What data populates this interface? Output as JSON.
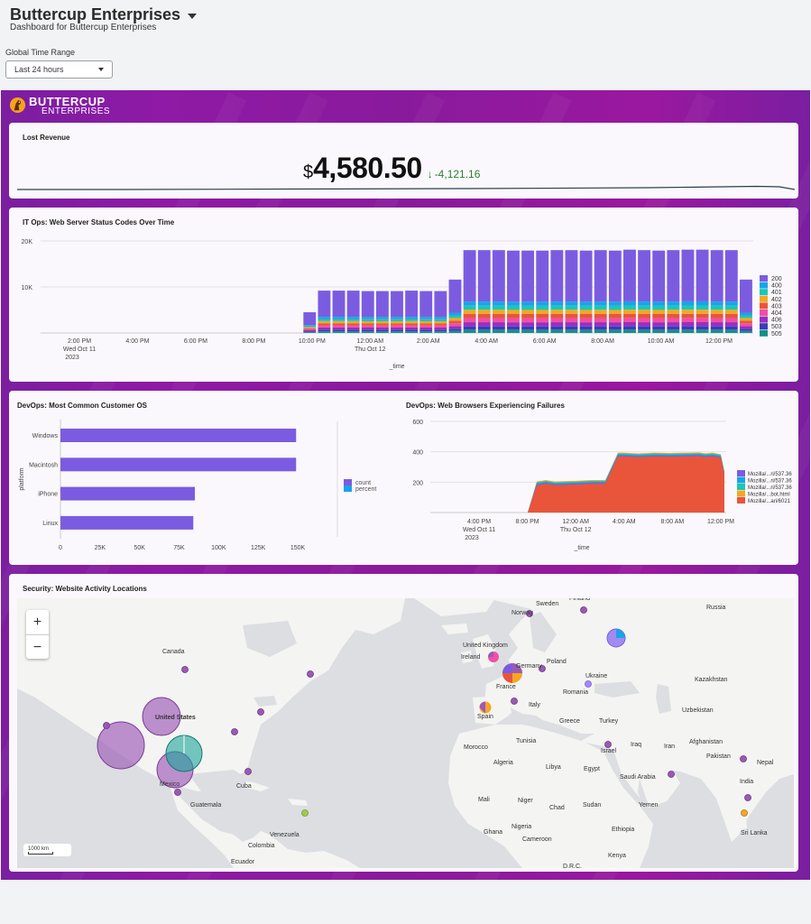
{
  "header": {
    "title": "Buttercup Enterprises",
    "subtitle": "Dashboard for Buttercup Enterprises",
    "time_range_label": "Global Time Range",
    "time_range_value": "Last 24 hours"
  },
  "logo": {
    "line1": "BUTTERCUP",
    "line2": "ENTERPRISES"
  },
  "lost_revenue": {
    "title": "Lost Revenue",
    "currency": "$",
    "value": "4,580.50",
    "delta": "-4,121.16",
    "delta_color": "#2e7d32"
  },
  "status_codes": {
    "title": "IT Ops: Web Server Status Codes Over Time",
    "y_ticks": [
      "20K",
      "10K"
    ],
    "x_ticks": [
      {
        "t1": "2:00 PM",
        "t2": "Wed Oct 11",
        "t3": "2023"
      },
      {
        "t1": "4:00 PM",
        "t2": "",
        "t3": ""
      },
      {
        "t1": "6:00 PM",
        "t2": "",
        "t3": ""
      },
      {
        "t1": "8:00 PM",
        "t2": "",
        "t3": ""
      },
      {
        "t1": "10:00 PM",
        "t2": "",
        "t3": ""
      },
      {
        "t1": "12:00 AM",
        "t2": "Thu Oct 12",
        "t3": ""
      },
      {
        "t1": "2:00 AM",
        "t2": "",
        "t3": ""
      },
      {
        "t1": "4:00 AM",
        "t2": "",
        "t3": ""
      },
      {
        "t1": "6:00 AM",
        "t2": "",
        "t3": ""
      },
      {
        "t1": "8:00 AM",
        "t2": "",
        "t3": ""
      },
      {
        "t1": "10:00 AM",
        "t2": "",
        "t3": ""
      },
      {
        "t1": "12:00 PM",
        "t2": "",
        "t3": ""
      }
    ],
    "x_label": "_time",
    "legend": [
      {
        "name": "200",
        "color": "#7b5ce0"
      },
      {
        "name": "400",
        "color": "#1aa3e8"
      },
      {
        "name": "401",
        "color": "#1cc7b6"
      },
      {
        "name": "402",
        "color": "#f5a623"
      },
      {
        "name": "403",
        "color": "#e8553a"
      },
      {
        "name": "404",
        "color": "#f04fa6"
      },
      {
        "name": "406",
        "color": "#9a2ebf"
      },
      {
        "name": "503",
        "color": "#3b3bb8"
      },
      {
        "name": "505",
        "color": "#158f8a"
      }
    ]
  },
  "chart_data": [
    {
      "type": "bar",
      "title": "IT Ops: Web Server Status Codes Over Time",
      "stacked": true,
      "xlabel": "_time",
      "ylim": [
        0,
        20000
      ],
      "bar_totals": [
        0,
        0,
        0,
        0,
        0,
        0,
        0,
        0,
        0,
        0,
        0,
        0,
        0,
        0,
        0,
        0,
        0,
        0,
        4500,
        9200,
        9200,
        9200,
        9100,
        9100,
        9100,
        9200,
        9100,
        9100,
        11600,
        18000,
        18000,
        18000,
        17900,
        17900,
        17900,
        18000,
        18000,
        17900,
        18000,
        17900,
        18100,
        18000,
        17900,
        18000,
        18100,
        18100,
        18000,
        18000,
        11600
      ],
      "series_shares": [
        {
          "name": "200",
          "share": 0.62
        },
        {
          "name": "400",
          "share": 0.05
        },
        {
          "name": "401",
          "share": 0.05
        },
        {
          "name": "402",
          "share": 0.05
        },
        {
          "name": "403",
          "share": 0.05
        },
        {
          "name": "404",
          "share": 0.05
        },
        {
          "name": "406",
          "share": 0.05
        },
        {
          "name": "503",
          "share": 0.04
        },
        {
          "name": "505",
          "share": 0.04
        }
      ]
    },
    {
      "type": "bar",
      "orientation": "horizontal",
      "title": "DevOps: Most Common Customer OS",
      "categories": [
        "Windows",
        "Macintosh",
        "iPhone",
        "Linux"
      ],
      "ylabel": "platform",
      "series": [
        {
          "name": "count",
          "values": [
            149000,
            149000,
            85000,
            84000
          ]
        }
      ],
      "xlim": [
        0,
        150000
      ]
    },
    {
      "type": "area",
      "title": "DevOps: Web Browsers Experiencing Failures",
      "xlabel": "_time",
      "ylim": [
        0,
        600
      ],
      "x": [
        "4:00 PM",
        "6:00 PM",
        "8:00 PM",
        "9:00 PM",
        "10:00 PM",
        "11:00 PM",
        "12:00 AM",
        "1:00 AM",
        "2:00 AM",
        "3:00 AM",
        "4:00 AM",
        "5:00 AM",
        "6:00 AM",
        "7:00 AM",
        "8:00 AM",
        "9:00 AM",
        "10:00 AM",
        "11:00 AM",
        "12:00 PM",
        "1:00 PM"
      ],
      "total": [
        0,
        0,
        0,
        180,
        190,
        180,
        185,
        190,
        190,
        370,
        370,
        365,
        370,
        368,
        370,
        372,
        366,
        370,
        360,
        250
      ]
    }
  ],
  "os_chart": {
    "title": "DevOps: Most Common Customer OS",
    "ylabel": "platform",
    "categories": [
      "Windows",
      "Macintosh",
      "iPhone",
      "Linux"
    ],
    "x_ticks": [
      "0",
      "25K",
      "50K",
      "75K",
      "100K",
      "125K",
      "150K"
    ],
    "legend": [
      {
        "name": "count",
        "color": "#7b5ce0"
      },
      {
        "name": "percent",
        "color": "#1aa3e8"
      }
    ],
    "bar_color": "#7b5ce0"
  },
  "browser_chart": {
    "title": "DevOps: Web Browsers Experiencing Failures",
    "y_ticks": [
      "600",
      "400",
      "200"
    ],
    "x_ticks": [
      {
        "t1": "4:00 PM",
        "t2": "Wed Oct 11",
        "t3": "2023"
      },
      {
        "t1": "8:00 PM",
        "t2": "",
        "t3": ""
      },
      {
        "t1": "12:00 AM",
        "t2": "Thu Oct 12",
        "t3": ""
      },
      {
        "t1": "4:00 AM",
        "t2": "",
        "t3": ""
      },
      {
        "t1": "8:00 AM",
        "t2": "",
        "t3": ""
      },
      {
        "t1": "12:00 PM",
        "t2": "",
        "t3": ""
      }
    ],
    "x_label": "_time",
    "legend": [
      {
        "name": "Mozilla/...ri/537.36",
        "color": "#7b5ce0"
      },
      {
        "name": "Mozilla/...ri/537.36",
        "color": "#1aa3e8"
      },
      {
        "name": "Mozilla/...ri/537.36",
        "color": "#1cc7b6"
      },
      {
        "name": "Mozilla/...bot.html",
        "color": "#f5a623"
      },
      {
        "name": "Mozilla/...ari/6021",
        "color": "#e8553a"
      }
    ]
  },
  "security_map": {
    "title": "Security: Website Activity Locations",
    "zoom_in": "+",
    "zoom_out": "−",
    "scale": "1000 km",
    "labels": [
      "Sweden",
      "Finland",
      "Norway",
      "Russia",
      "Canada",
      "United Kingdom",
      "Ireland",
      "Germany",
      "Poland",
      "Ukraine",
      "Kazakhstan",
      "France",
      "Romania",
      "Italy",
      "Uzbekistan",
      "Spain",
      "Greece",
      "Turkey",
      "United States",
      "Tunisia",
      "Afghanistan",
      "Morocco",
      "Iraq",
      "Iran",
      "Pakistan",
      "Israel",
      "Nepal",
      "Algeria",
      "Libya",
      "Egypt",
      "India",
      "Saudi Arabia",
      "Mexico",
      "Cuba",
      "Guatemala",
      "Mali",
      "Niger",
      "Chad",
      "Sudan",
      "Yemen",
      "Nigeria",
      "Ethiopia",
      "Sri Lanka",
      "Venezuela",
      "Ghana",
      "Cameroon",
      "Colombia",
      "Kenya",
      "Ecuador",
      "D.R.C."
    ]
  }
}
